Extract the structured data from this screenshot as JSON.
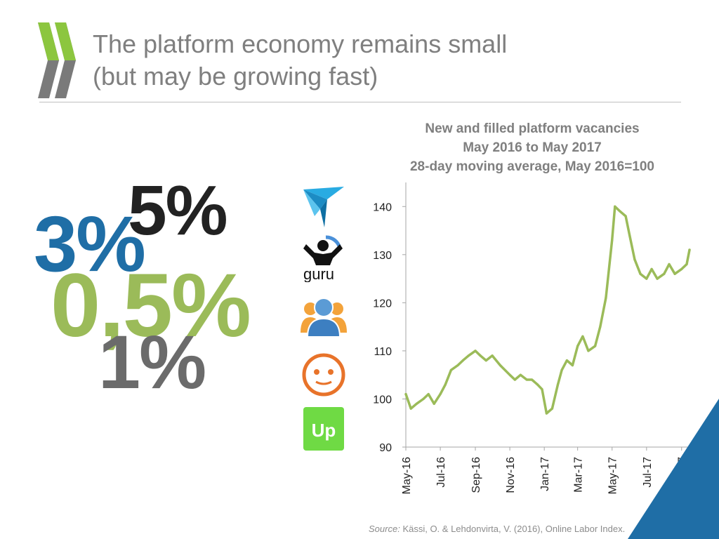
{
  "slide": {
    "title_line1": "The platform economy remains small",
    "title_line2": "(but may be growing fast)"
  },
  "percentages": [
    {
      "label": "3%",
      "color": "#1f6ea6"
    },
    {
      "label": "5%",
      "color": "#222222"
    },
    {
      "label": "0,5%",
      "color": "#9bbb59"
    },
    {
      "label": "1%",
      "color": "#6b6b6b"
    }
  ],
  "platform_logos": [
    "freelancer-logo",
    "guru-logo",
    "peopleperhour-logo",
    "smiley-logo",
    "upwork-logo"
  ],
  "guru_text": "guru",
  "upwork_text": "Up",
  "chart_data": {
    "type": "line",
    "title_lines": [
      "New and filled platform vacancies",
      "May 2016 to May 2017",
      "28-day moving average, May 2016=100"
    ],
    "xlabel": "",
    "ylabel": "",
    "ylim": [
      90,
      145
    ],
    "yticks": [
      90,
      100,
      110,
      120,
      130,
      140
    ],
    "xticks": [
      "May-16",
      "Jul-16",
      "Sep-16",
      "Nov-16",
      "Jan-17",
      "Mar-17",
      "May-17",
      "Jul-17",
      "Sep-17"
    ],
    "xrange": [
      "2016-05-01",
      "2017-09-15"
    ],
    "grid": false,
    "line_color": "#9bbb59",
    "series": [
      {
        "x": [
          "2016-05-01",
          "2016-05-10",
          "2016-05-20",
          "2016-06-01",
          "2016-06-10",
          "2016-06-20",
          "2016-07-01",
          "2016-07-10",
          "2016-07-20",
          "2016-08-01",
          "2016-08-10",
          "2016-08-20",
          "2016-09-01",
          "2016-09-10",
          "2016-09-20",
          "2016-10-01",
          "2016-10-15",
          "2016-11-01",
          "2016-11-10",
          "2016-11-20",
          "2016-12-01",
          "2016-12-10",
          "2016-12-20",
          "2016-12-28",
          "2017-01-05",
          "2017-01-15",
          "2017-01-25",
          "2017-02-01",
          "2017-02-10",
          "2017-02-20",
          "2017-03-01",
          "2017-03-10",
          "2017-03-20",
          "2017-04-01",
          "2017-04-10",
          "2017-04-20",
          "2017-05-01",
          "2017-05-06",
          "2017-05-15",
          "2017-05-25",
          "2017-06-01",
          "2017-06-10",
          "2017-06-20",
          "2017-07-01",
          "2017-07-10",
          "2017-07-20",
          "2017-08-01",
          "2017-08-10",
          "2017-08-20",
          "2017-09-01",
          "2017-09-10",
          "2017-09-15"
        ],
        "values": [
          101,
          98,
          99,
          100,
          101,
          99,
          101,
          103,
          106,
          107,
          108,
          109,
          110,
          109,
          108,
          109,
          107,
          105,
          104,
          105,
          104,
          104,
          103,
          102,
          97,
          98,
          103,
          106,
          108,
          107,
          111,
          113,
          110,
          111,
          115,
          121,
          133,
          140,
          139,
          138,
          134,
          129,
          126,
          125,
          127,
          125,
          126,
          128,
          126,
          127,
          128,
          131
        ]
      }
    ]
  },
  "source": {
    "prefix": "Source:",
    "text": "Kässi, O. & Lehdonvirta, V. (2016), Online Labor Index."
  },
  "colors": {
    "accent_blue": "#1f6ea6",
    "accent_green": "#9bbb59",
    "title_grey": "#7f7f7f"
  }
}
